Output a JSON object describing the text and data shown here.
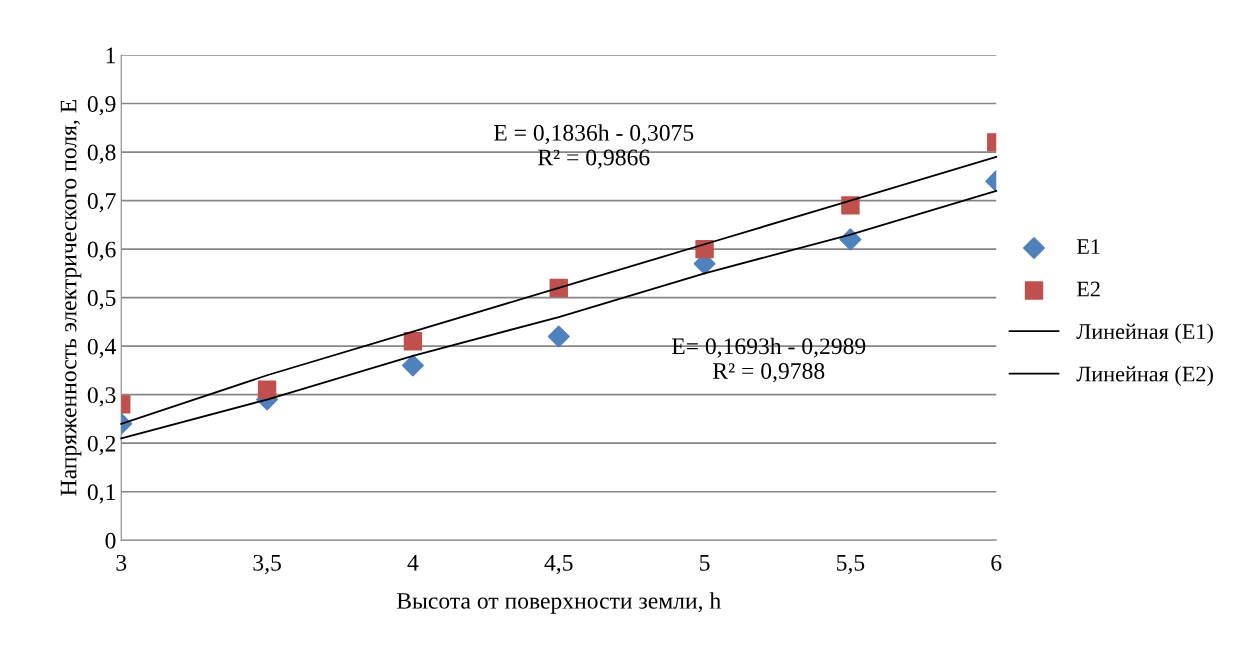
{
  "chart_data": {
    "type": "scatter",
    "xlabel": "Высота от поверхности земли, h",
    "ylabel": "Напряженность электрического поля, E",
    "x": [
      3,
      3.5,
      4,
      4.5,
      5,
      5.5,
      6
    ],
    "series": [
      {
        "name": "E1",
        "marker": "diamond",
        "color": "#4f81bd",
        "values": [
          0.24,
          0.29,
          0.36,
          0.42,
          0.57,
          0.62,
          0.74
        ]
      },
      {
        "name": "E2",
        "marker": "square",
        "color": "#c0504d",
        "values": [
          0.28,
          0.31,
          0.41,
          0.52,
          0.6,
          0.69,
          0.82
        ]
      },
      {
        "name": "Линейная (E1)",
        "type": "line",
        "marker": "none",
        "line_style": "solid",
        "color": "#000000",
        "values": [
          0.21,
          0.29,
          0.38,
          0.46,
          0.55,
          0.63,
          0.72
        ]
      },
      {
        "name": "Линейная (E2)",
        "type": "line",
        "marker": "none",
        "line_style": "solid",
        "color": "#000000",
        "values": [
          0.24,
          0.34,
          0.43,
          0.52,
          0.61,
          0.7,
          0.79
        ]
      }
    ],
    "xlim": [
      3,
      6
    ],
    "xticks": [
      3,
      {
        "value": 3.5,
        "label": "3,5"
      },
      4,
      {
        "value": 4.5,
        "label": "4,5"
      },
      5,
      {
        "value": 5.5,
        "label": "5,5"
      },
      6
    ],
    "ylim": [
      0,
      1
    ],
    "yticks": [
      0,
      {
        "value": 0.1,
        "label": "0,1"
      },
      {
        "value": 0.2,
        "label": "0,2"
      },
      {
        "value": 0.3,
        "label": "0,3"
      },
      {
        "value": 0.4,
        "label": "0,4"
      },
      {
        "value": 0.5,
        "label": "0,5"
      },
      {
        "value": 0.6,
        "label": "0,6"
      },
      {
        "value": 0.7,
        "label": "0,7"
      },
      {
        "value": 0.8,
        "label": "0,8"
      },
      {
        "value": 0.9,
        "label": "0,9"
      },
      1
    ],
    "annotations": [
      "E = 0,1836h - 0,3075\nR² = 0,9866",
      "E= 0,1693h - 0,2989\nR² = 0,9788"
    ],
    "grid": "y",
    "legend": "right"
  }
}
